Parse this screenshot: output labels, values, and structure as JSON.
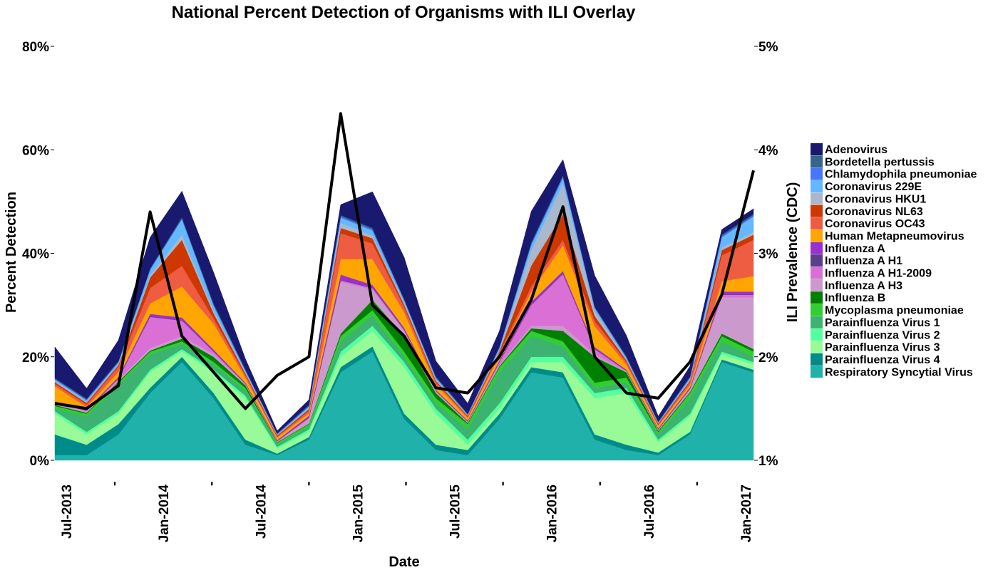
{
  "chart_data": {
    "type": "area",
    "title": "National Percent Detection of Organisms with ILI Overlay",
    "xlabel": "Date",
    "ylabel": "Percent Detection",
    "y2label": "ILI Prevalence (CDC)",
    "ylim": [
      0,
      80
    ],
    "y2lim": [
      1,
      5
    ],
    "yticks": [
      "0%",
      "20%",
      "40%",
      "60%",
      "80%"
    ],
    "y2ticks": [
      "1%",
      "2%",
      "3%",
      "4%",
      "5%"
    ],
    "xticks": [
      "Jul-2013",
      "'",
      "Jan-2014",
      "'",
      "Jul-2014",
      "'",
      "Jan-2015",
      "'",
      "Jul-2015",
      "'",
      "Jan-2016",
      "'",
      "Jul-2016",
      "'",
      "Jan-2017"
    ],
    "legend_position": "right",
    "grid": false,
    "x": [
      "Jul-2013",
      "Sep-2013",
      "Nov-2013",
      "Jan-2014",
      "Mar-2014",
      "May-2014",
      "Jul-2014",
      "Sep-2014",
      "Nov-2014",
      "Jan-2015",
      "Mar-2015",
      "May-2015",
      "Jul-2015",
      "Sep-2015",
      "Nov-2015",
      "Jan-2016",
      "Mar-2016",
      "May-2016",
      "Jul-2016",
      "Sep-2016",
      "Nov-2016",
      "Jan-2017",
      "Feb-2017"
    ],
    "series": [
      {
        "name": "Respiratory Syncytial Virus",
        "color": "#20B2AA",
        "values": [
          1,
          1,
          5,
          13,
          19,
          12,
          3,
          1,
          4,
          17,
          21,
          8,
          2,
          1,
          8,
          17,
          16,
          4,
          2,
          1,
          5,
          19,
          17
        ]
      },
      {
        "name": "Parainfluenza Virus 4",
        "color": "#008B8B",
        "values": [
          4,
          2,
          2,
          1,
          1,
          1,
          1,
          0.3,
          0.5,
          1,
          1,
          1,
          1,
          1,
          1,
          1,
          1,
          1,
          1,
          0.5,
          0.5,
          0.5,
          0.5
        ]
      },
      {
        "name": "Parainfluenza Virus 3",
        "color": "#98FB98",
        "values": [
          4,
          2,
          2,
          3,
          1,
          4,
          8,
          1,
          1,
          2,
          3,
          9,
          6,
          1,
          1,
          1,
          2,
          7,
          10,
          2,
          3,
          1,
          1
        ]
      },
      {
        "name": "Parainfluenza Virus 2",
        "color": "#54FF9F",
        "values": [
          0.5,
          0.5,
          0.5,
          0.5,
          0.5,
          0.5,
          0.5,
          0.3,
          0.5,
          1,
          1,
          1,
          1,
          1,
          1,
          1,
          1,
          1,
          1,
          0.5,
          0.5,
          0.5,
          0.5
        ]
      },
      {
        "name": "Parainfluenza Virus 1",
        "color": "#3CB371",
        "values": [
          0.5,
          3,
          5,
          3,
          1,
          1,
          1,
          0.5,
          0.5,
          2,
          2,
          1,
          1,
          2,
          6,
          4,
          2,
          1,
          1,
          1,
          3,
          2,
          1
        ]
      },
      {
        "name": "Mycoplasma pneumoniae",
        "color": "#32CD32",
        "values": [
          0.5,
          0.5,
          0.5,
          0.5,
          0.5,
          0.5,
          0.5,
          0.3,
          0.5,
          1,
          1,
          1,
          1,
          1,
          1,
          1,
          1,
          1,
          1,
          0.5,
          1,
          1,
          1
        ]
      },
      {
        "name": "Influenza B",
        "color": "#008000",
        "values": [
          0.2,
          0.2,
          0.2,
          0.2,
          0.5,
          1,
          0.5,
          0.1,
          0.1,
          0.5,
          2,
          3,
          1,
          0.2,
          0.2,
          0.5,
          2,
          5,
          1,
          0.2,
          0.2,
          0.5,
          0.5
        ]
      },
      {
        "name": "Influenza A H3",
        "color": "#CC99CC",
        "values": [
          0.3,
          0.3,
          0.3,
          0.5,
          0.5,
          0.5,
          0.2,
          0.1,
          1,
          10,
          2,
          1,
          0.3,
          0.2,
          0.3,
          0.5,
          1,
          0.5,
          0.2,
          0.2,
          0.5,
          7,
          10
        ]
      },
      {
        "name": "Influenza A H1-2009",
        "color": "#DA70D6",
        "values": [
          0.1,
          0.1,
          0.3,
          6,
          3,
          0.5,
          0.1,
          0.1,
          0.1,
          0.3,
          0.3,
          0.2,
          0.1,
          0.1,
          0.5,
          4,
          10,
          1,
          0.1,
          0.1,
          0.1,
          0.5,
          0.5
        ]
      },
      {
        "name": "Influenza A H1",
        "color": "#5B3F8C",
        "values": [
          0.1,
          0.1,
          0.1,
          0.1,
          0.1,
          0.1,
          0.1,
          0.1,
          0.1,
          0.1,
          0.1,
          0.1,
          0.1,
          0.1,
          0.1,
          0.1,
          0.1,
          0.1,
          0.1,
          0.1,
          0.1,
          0.1,
          0.1
        ]
      },
      {
        "name": "Influenza A",
        "color": "#9B30D0",
        "values": [
          0.1,
          0.1,
          0.2,
          0.5,
          0.5,
          0.3,
          0.1,
          0.1,
          0.3,
          1,
          0.5,
          0.3,
          0.1,
          0.1,
          0.2,
          0.5,
          0.5,
          0.3,
          0.1,
          0.1,
          0.2,
          0.5,
          0.5
        ]
      },
      {
        "name": "Human Metapneumovirus",
        "color": "#FFA500",
        "values": [
          3,
          0.5,
          1,
          2,
          6,
          5,
          1,
          0.5,
          0.5,
          3,
          5,
          3,
          1,
          0.5,
          1,
          2,
          5,
          4,
          1,
          0.5,
          0.5,
          2,
          3
        ]
      },
      {
        "name": "Coronavirus OC43",
        "color": "#EE5C42",
        "values": [
          0.5,
          0.5,
          1,
          3,
          4,
          1,
          0.5,
          0.2,
          0.5,
          5,
          3,
          1,
          0.5,
          0.2,
          0.5,
          1,
          1,
          1,
          0.5,
          0.2,
          0.5,
          5,
          7
        ]
      },
      {
        "name": "Coronavirus NL63",
        "color": "#CD3700",
        "values": [
          0.3,
          0.3,
          0.3,
          2,
          5,
          1,
          0.3,
          0.2,
          0.3,
          1,
          1,
          0.5,
          0.3,
          0.2,
          0.3,
          4,
          5,
          1,
          0.3,
          0.2,
          0.3,
          1,
          1
        ]
      },
      {
        "name": "Coronavirus HKU1",
        "color": "#A9B8CC",
        "values": [
          0.2,
          0.2,
          0.2,
          0.5,
          1,
          0.5,
          0.2,
          0.1,
          0.2,
          1,
          0.5,
          0.3,
          0.2,
          0.1,
          0.3,
          3,
          6,
          1,
          0.2,
          0.1,
          0.2,
          0.5,
          0.5
        ]
      },
      {
        "name": "Coronavirus 229E",
        "color": "#63B8FF",
        "values": [
          0.3,
          0.3,
          0.3,
          1,
          3,
          1,
          0.3,
          0.1,
          0.3,
          1,
          1,
          0.5,
          0.3,
          0.1,
          0.3,
          1,
          1,
          0.5,
          0.3,
          0.1,
          0.3,
          2,
          3
        ]
      },
      {
        "name": "Chlamydophila pneumoniae",
        "color": "#4876FF",
        "values": [
          0.1,
          0.1,
          0.1,
          0.1,
          0.1,
          0.1,
          0.1,
          0.1,
          0.1,
          0.2,
          0.2,
          0.1,
          0.1,
          0.1,
          0.1,
          0.2,
          0.2,
          0.1,
          0.1,
          0.1,
          0.1,
          0.2,
          0.2
        ]
      },
      {
        "name": "Bordetella pertussis",
        "color": "#36648B",
        "values": [
          0.2,
          0.2,
          0.2,
          0.2,
          0.3,
          0.3,
          0.2,
          0.1,
          0.2,
          0.3,
          0.3,
          0.2,
          0.2,
          0.1,
          0.2,
          0.3,
          0.3,
          0.2,
          0.2,
          0.1,
          0.2,
          0.3,
          0.3
        ]
      },
      {
        "name": "Adenovirus",
        "color": "#191970",
        "values": [
          6,
          2,
          4,
          6,
          5,
          6,
          2,
          0.5,
          1,
          2,
          7,
          8,
          3,
          2,
          3,
          6,
          3,
          6,
          4,
          1,
          2,
          1,
          1
        ]
      }
    ],
    "ili_line": {
      "color": "#000000",
      "values": [
        1.55,
        1.5,
        1.72,
        3.4,
        2.2,
        1.85,
        1.5,
        1.82,
        2.0,
        4.35,
        2.5,
        2.2,
        1.7,
        1.65,
        2.0,
        2.55,
        3.45,
        2.0,
        1.65,
        1.6,
        1.95,
        2.6,
        3.8
      ]
    }
  }
}
